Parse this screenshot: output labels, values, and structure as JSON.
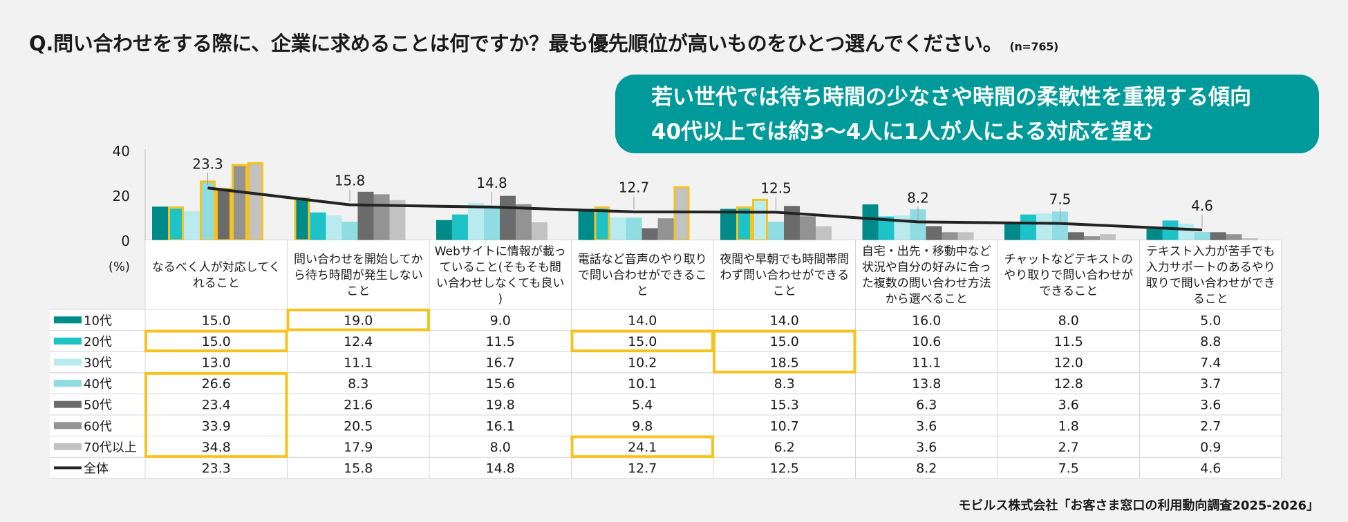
{
  "title": "Q.問い合わせをする際に、企業に求めることは何ですか？最も優先順位が高いものをひとつ選んでください。",
  "sample_size": "(n=765)",
  "callout": {
    "line1": "若い世代では待ち時間の少なさや時間の柔軟性を重視する傾向",
    "line2": "40代以上では約3～4人に1人が人による対応を望む"
  },
  "source": "モビルス株式会社「お客さま窓口の利用動向調査2025-2026」",
  "colors": {
    "10代": "#008b8b",
    "20代": "#1ec3c8",
    "30代": "#b9ebee",
    "40代": "#8fdde2",
    "50代": "#6b6b6b",
    "60代": "#939393",
    "70代以上": "#c2c2c2",
    "全体": "#222222",
    "highlight": "#f7c21d",
    "callout": "#009a9a"
  },
  "chart_data": {
    "type": "bar",
    "ylabel": "(%)",
    "ylim": [
      0,
      40
    ],
    "yticks": [
      0,
      20,
      40
    ],
    "grid": false,
    "legend": "left (table rows)",
    "categories": [
      "なるべく人が対応してくれること",
      "問い合わせを開始してから待ち時間が発生しないこと",
      "Webサイトに情報が載っていること(そもそも問い合わせしなくても良い)",
      "電話など音声のやり取りで問い合わせができること",
      "夜間や早朝でも時間帯問わず問い合わせができること",
      "自宅・出先・移動中など状況や自分の好みに合った複数の問い合わせ方法から選べること",
      "チャットなどテキストのやり取りで問い合わせができること",
      "テキスト入力が苦手でも入力サポートのあるやり取りで問い合わせができること"
    ],
    "series": [
      {
        "name": "10代",
        "values": [
          15.0,
          19.0,
          9.0,
          14.0,
          14.0,
          16.0,
          8.0,
          5.0
        ],
        "value_labels": [
          "15.0",
          "19.0",
          "9.0",
          "14.0",
          "14.0",
          "16.0",
          "8.0",
          "5.0"
        ],
        "highlighted": [
          false,
          true,
          false,
          false,
          false,
          false,
          false,
          false
        ]
      },
      {
        "name": "20代",
        "values": [
          15.0,
          12.4,
          11.5,
          15.0,
          15.0,
          10.6,
          11.5,
          8.8
        ],
        "value_labels": [
          "15.0",
          "12.4",
          "11.5",
          "15.0",
          "15.0",
          "10.6",
          "11.5",
          "8.8"
        ],
        "highlighted": [
          true,
          false,
          false,
          true,
          true,
          false,
          false,
          false
        ]
      },
      {
        "name": "30代",
        "values": [
          13.0,
          11.1,
          16.7,
          10.2,
          18.5,
          11.1,
          12.0,
          7.4
        ],
        "value_labels": [
          "13.0",
          "11.1",
          "16.7",
          "10.2",
          "18.5",
          "11.1",
          "12.0",
          "7.4"
        ],
        "highlighted": [
          false,
          false,
          false,
          false,
          true,
          false,
          false,
          false
        ]
      },
      {
        "name": "40代",
        "values": [
          26.6,
          8.3,
          15.6,
          10.1,
          8.3,
          13.8,
          12.8,
          3.7
        ],
        "value_labels": [
          "26.6",
          "8.3",
          "15.6",
          "10.1",
          "8.3",
          "13.8",
          "12.8",
          "3.7"
        ],
        "highlighted": [
          true,
          false,
          false,
          false,
          false,
          false,
          false,
          false
        ]
      },
      {
        "name": "50代",
        "values": [
          23.4,
          21.6,
          19.8,
          5.4,
          15.3,
          6.3,
          3.6,
          3.6
        ],
        "value_labels": [
          "23.4",
          "21.6",
          "19.8",
          "5.4",
          "15.3",
          "6.3",
          "3.6",
          "3.6"
        ],
        "highlighted": [
          true,
          false,
          false,
          false,
          false,
          false,
          false,
          false
        ]
      },
      {
        "name": "60代",
        "values": [
          33.9,
          20.5,
          16.1,
          9.8,
          10.7,
          3.6,
          1.8,
          2.7
        ],
        "value_labels": [
          "33.9",
          "20.5",
          "16.1",
          "9.8",
          "10.7",
          "3.6",
          "1.8",
          "2.7"
        ],
        "highlighted": [
          true,
          false,
          false,
          false,
          false,
          false,
          false,
          false
        ]
      },
      {
        "name": "70代以上",
        "values": [
          34.8,
          17.9,
          8.0,
          24.1,
          6.2,
          3.6,
          2.7,
          0.9
        ],
        "value_labels": [
          "34.8",
          "17.9",
          "8.0",
          "24.1",
          "6.2",
          "3.6",
          "2.7",
          "0.9"
        ],
        "highlighted": [
          true,
          false,
          false,
          true,
          false,
          false,
          false,
          false
        ]
      },
      {
        "name": "全体",
        "type": "line",
        "values": [
          23.3,
          15.8,
          14.8,
          12.7,
          12.5,
          8.2,
          7.5,
          4.6
        ],
        "value_labels": [
          "23.3",
          "15.8",
          "14.8",
          "12.7",
          "12.5",
          "8.2",
          "7.5",
          "4.6"
        ]
      }
    ]
  }
}
